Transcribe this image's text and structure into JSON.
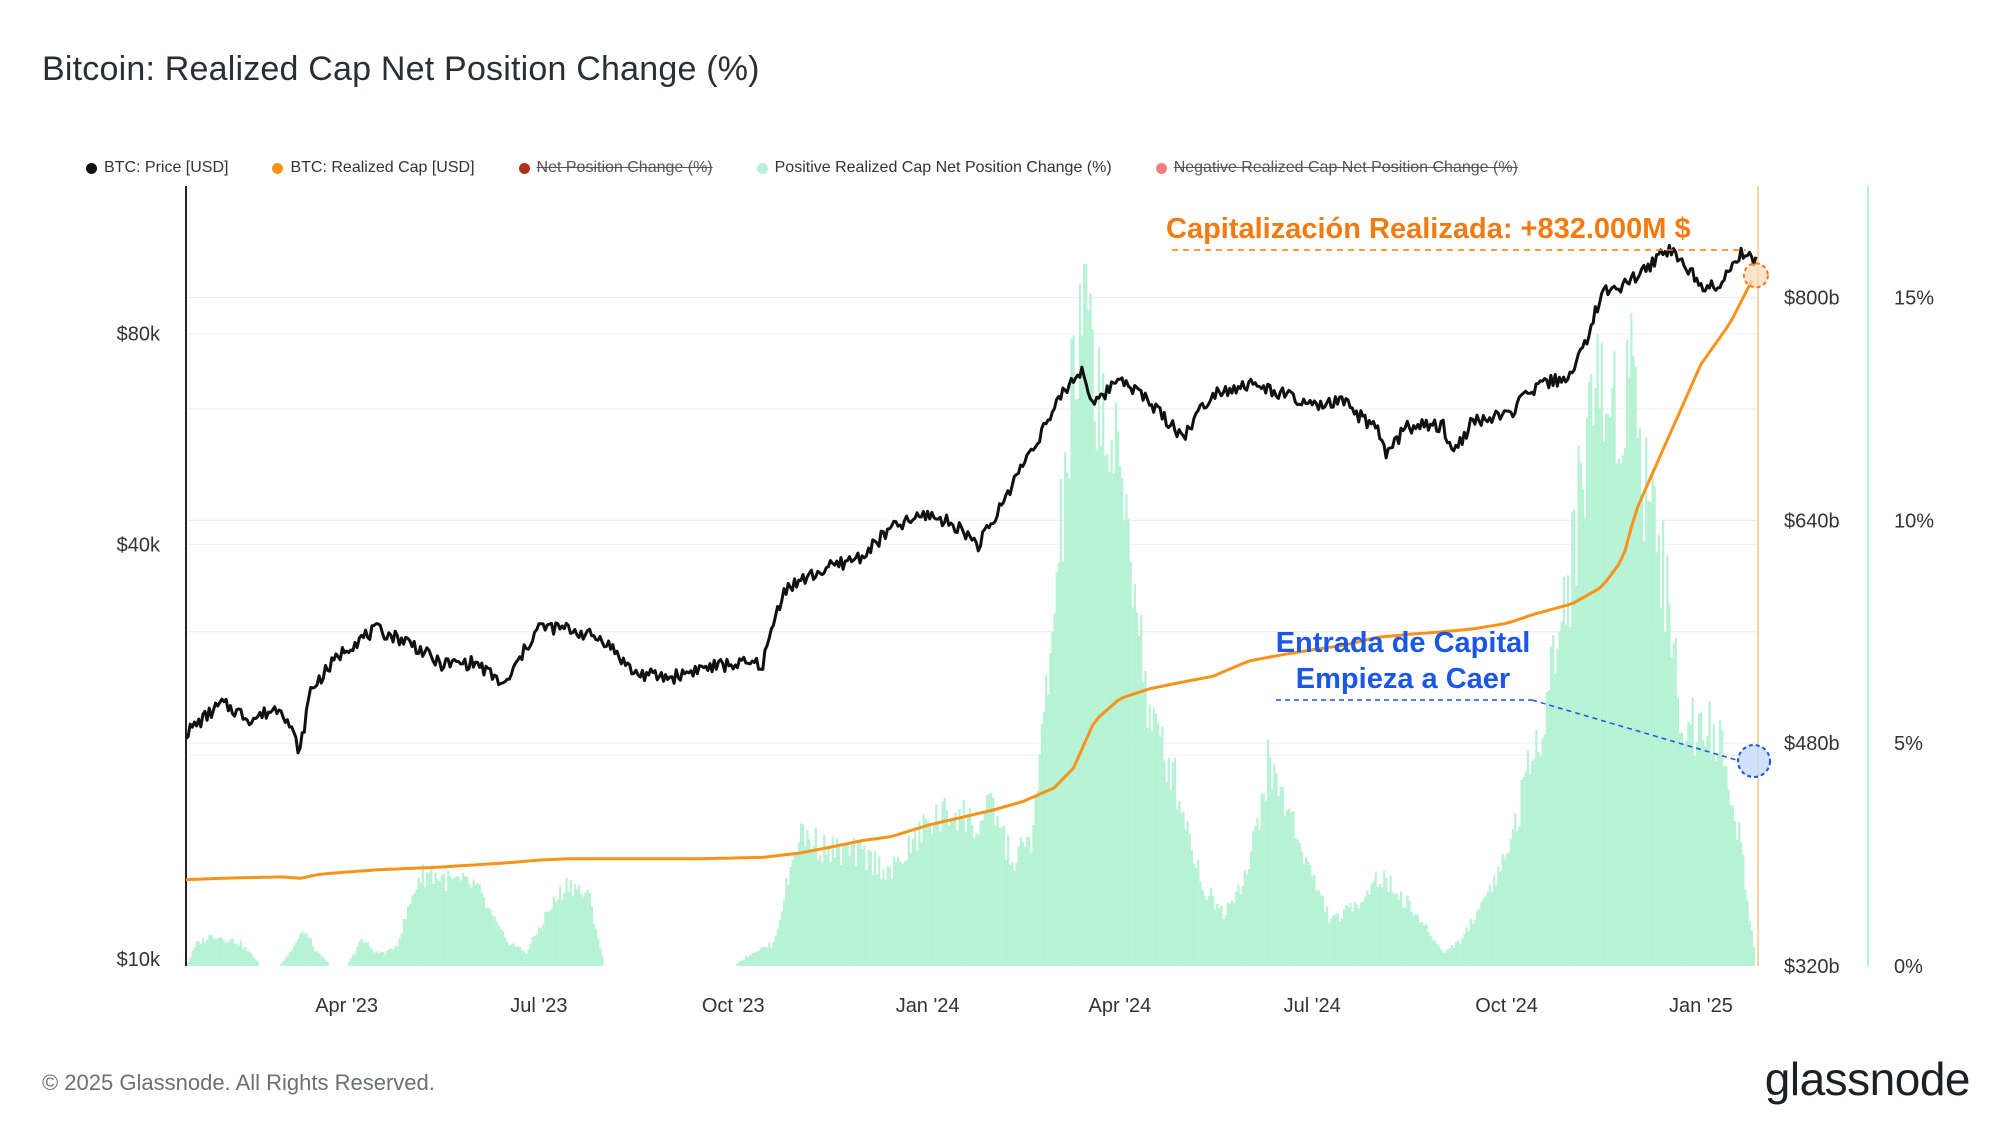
{
  "title": "Bitcoin: Realized Cap Net Position Change (%)",
  "legend": [
    {
      "label": "BTC: Price [USD]",
      "color": "#111111",
      "struck": false
    },
    {
      "label": "BTC: Realized Cap [USD]",
      "color": "#f7931a",
      "struck": false
    },
    {
      "label": "Net Position Change (%)",
      "color": "#b0301f",
      "struck": true
    },
    {
      "label": "Positive Realized Cap Net Position Change (%)",
      "color": "#b6f2d4",
      "struck": false
    },
    {
      "label": "Negative Realized Cap Net Position Change (%)",
      "color": "#f08080",
      "struck": true
    }
  ],
  "annotations": {
    "realized_cap": "Capitalización Realizada: +832.000M $",
    "capital_inflow_line1": "Entrada de Capital",
    "capital_inflow_line2": "Empieza a Caer"
  },
  "footer": "© 2025 Glassnode. All Rights Reserved.",
  "logo": "glassnode",
  "colors": {
    "price": "#111111",
    "realized_cap": "#f7931a",
    "positive_change": "#b6f2d4",
    "annotation_orange": "#f27a10",
    "annotation_blue": "#1a56e8"
  },
  "chart_data": {
    "type": "line",
    "x_ticks": [
      "Apr '23",
      "Jul '23",
      "Oct '23",
      "Jan '24",
      "Apr '24",
      "Jul '24",
      "Oct '24",
      "Jan '25"
    ],
    "y_left_ticks": [
      "$80k",
      "$40k",
      "$10k"
    ],
    "y_left_scale": "log",
    "y_left_range": [
      10000,
      130000
    ],
    "y_mid_ticks": [
      "$800b",
      "$640b",
      "$480b",
      "$320b"
    ],
    "y_mid_range": [
      320,
      880
    ],
    "y_right_ticks": [
      "15%",
      "10%",
      "5%",
      "0%"
    ],
    "y_right_range": [
      0,
      17.5
    ],
    "series": [
      {
        "name": "BTC: Price [USD]",
        "axis": "left",
        "x": [
          "2023-01-15",
          "2023-02-01",
          "2023-02-15",
          "2023-03-01",
          "2023-03-10",
          "2023-03-15",
          "2023-04-01",
          "2023-04-15",
          "2023-05-01",
          "2023-05-15",
          "2023-06-01",
          "2023-06-15",
          "2023-07-01",
          "2023-07-15",
          "2023-08-01",
          "2023-08-15",
          "2023-09-01",
          "2023-09-15",
          "2023-10-01",
          "2023-10-15",
          "2023-10-25",
          "2023-11-01",
          "2023-11-15",
          "2023-12-01",
          "2023-12-15",
          "2024-01-01",
          "2024-01-15",
          "2024-01-25",
          "2024-02-01",
          "2024-02-15",
          "2024-03-01",
          "2024-03-05",
          "2024-03-14",
          "2024-03-20",
          "2024-04-01",
          "2024-04-15",
          "2024-05-01",
          "2024-05-15",
          "2024-06-01",
          "2024-06-15",
          "2024-07-01",
          "2024-07-15",
          "2024-08-01",
          "2024-08-05",
          "2024-08-15",
          "2024-09-01",
          "2024-09-06",
          "2024-09-15",
          "2024-10-01",
          "2024-10-15",
          "2024-11-01",
          "2024-11-06",
          "2024-11-15",
          "2024-12-01",
          "2024-12-17",
          "2025-01-01",
          "2025-01-10",
          "2025-01-20",
          "2025-01-27"
        ],
        "values": [
          21500,
          23700,
          22500,
          23500,
          20200,
          24800,
          28500,
          30200,
          29000,
          27000,
          27100,
          25100,
          30500,
          30300,
          29200,
          26200,
          25800,
          26600,
          27000,
          27000,
          34500,
          35400,
          37000,
          38500,
          42200,
          44200,
          42500,
          40000,
          43000,
          52000,
          62000,
          66000,
          71000,
          63000,
          69600,
          63800,
          57000,
          66000,
          67700,
          66000,
          62800,
          64000,
          58000,
          53800,
          59000,
          59000,
          54000,
          60000,
          61000,
          67000,
          70000,
          75600,
          91000,
          96000,
          106000,
          94000,
          94500,
          104000,
          102000
        ]
      },
      {
        "name": "BTC: Realized Cap [USD]",
        "axis": "mid",
        "x": [
          "2023-01-15",
          "2023-02-01",
          "2023-03-01",
          "2023-03-10",
          "2023-03-20",
          "2023-04-15",
          "2023-05-15",
          "2023-06-15",
          "2023-07-01",
          "2023-07-15",
          "2023-08-15",
          "2023-09-15",
          "2023-10-15",
          "2023-11-01",
          "2023-11-15",
          "2023-12-01",
          "2023-12-15",
          "2024-01-01",
          "2024-01-15",
          "2024-02-01",
          "2024-02-15",
          "2024-03-01",
          "2024-03-10",
          "2024-03-20",
          "2024-04-01",
          "2024-04-15",
          "2024-05-01",
          "2024-05-15",
          "2024-06-01",
          "2024-06-15",
          "2024-07-01",
          "2024-07-15",
          "2024-08-01",
          "2024-08-15",
          "2024-09-01",
          "2024-09-15",
          "2024-10-01",
          "2024-10-15",
          "2024-11-01",
          "2024-11-15",
          "2024-11-25",
          "2024-12-01",
          "2024-12-15",
          "2025-01-01",
          "2025-01-15",
          "2025-01-27"
        ],
        "values": [
          382,
          383,
          384,
          383,
          386,
          389,
          391,
          394,
          396,
          397,
          397,
          397,
          398,
          401,
          405,
          410,
          413,
          421,
          426,
          432,
          438,
          448,
          462,
          496,
          512,
          519,
          524,
          528,
          539,
          543,
          547,
          550,
          556,
          558,
          560,
          562,
          566,
          573,
          580,
          592,
          612,
          646,
          694,
          752,
          782,
          818
        ]
      },
      {
        "name": "Positive Realized Cap Net Position Change (%)",
        "axis": "right",
        "type": "area",
        "x": [
          "2023-01-15",
          "2023-01-20",
          "2023-01-28",
          "2023-02-10",
          "2023-02-20",
          "2023-02-28",
          "2023-03-05",
          "2023-03-12",
          "2023-03-18",
          "2023-03-25",
          "2023-04-01",
          "2023-04-08",
          "2023-04-15",
          "2023-04-20",
          "2023-04-25",
          "2023-05-05",
          "2023-05-10",
          "2023-05-20",
          "2023-06-01",
          "2023-06-10",
          "2023-06-15",
          "2023-06-25",
          "2023-07-05",
          "2023-07-15",
          "2023-07-25",
          "2023-08-01",
          "2023-08-10",
          "2023-08-20",
          "2023-09-01",
          "2023-09-15",
          "2023-10-01",
          "2023-10-10",
          "2023-10-20",
          "2023-11-01",
          "2023-11-15",
          "2023-12-01",
          "2023-12-15",
          "2024-01-01",
          "2024-01-15",
          "2024-01-25",
          "2024-02-01",
          "2024-02-10",
          "2024-02-20",
          "2024-03-01",
          "2024-03-10",
          "2024-03-15",
          "2024-03-20",
          "2024-03-28",
          "2024-04-05",
          "2024-04-15",
          "2024-04-25",
          "2024-05-01",
          "2024-05-10",
          "2024-05-20",
          "2024-06-01",
          "2024-06-10",
          "2024-06-20",
          "2024-07-01",
          "2024-07-10",
          "2024-07-20",
          "2024-08-01",
          "2024-08-10",
          "2024-08-20",
          "2024-09-01",
          "2024-09-10",
          "2024-09-20",
          "2024-10-01",
          "2024-10-15",
          "2024-11-01",
          "2024-11-10",
          "2024-11-20",
          "2024-12-01",
          "2024-12-05",
          "2024-12-10",
          "2024-12-15",
          "2024-12-25",
          "2025-01-01",
          "2025-01-10",
          "2025-01-20",
          "2025-01-27"
        ],
        "values": [
          0,
          0.5,
          0.7,
          0.5,
          0,
          0,
          0.3,
          0.8,
          0.3,
          0,
          0,
          0.6,
          0.3,
          0.3,
          0.5,
          2,
          2.1,
          1.9,
          1.8,
          1,
          0.6,
          0.3,
          1.2,
          1.9,
          1.5,
          0,
          0,
          0,
          0,
          0,
          0,
          0.3,
          0.5,
          3,
          2.6,
          2.5,
          2.1,
          3.2,
          3.5,
          3.1,
          3.6,
          2.3,
          3,
          8,
          13,
          14.5,
          13.5,
          11.5,
          10,
          5.5,
          4.5,
          3.5,
          1.8,
          1.2,
          2.2,
          4.5,
          3.5,
          2,
          1,
          1.3,
          2,
          1.7,
          1.1,
          0.3,
          0.6,
          1.5,
          2.5,
          5,
          9,
          13,
          12.5,
          13.5,
          11,
          10.5,
          8.5,
          5,
          5.8,
          5,
          2.7,
          0
        ]
      }
    ]
  }
}
